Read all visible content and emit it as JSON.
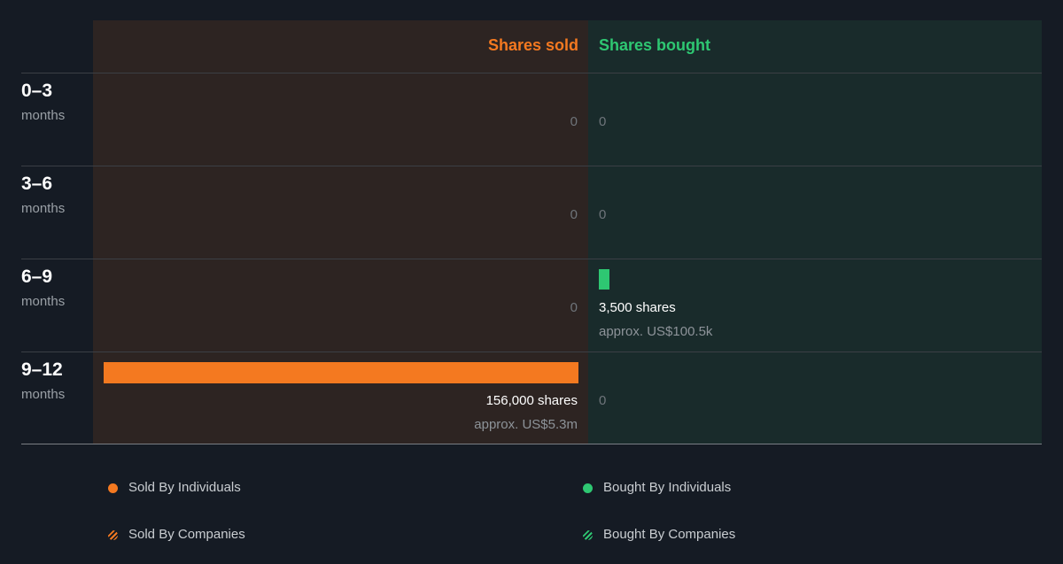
{
  "chart_data": {
    "type": "bar",
    "title": "",
    "columns": {
      "sold": "Shares sold",
      "bought": "Shares bought"
    },
    "rows": [
      {
        "range": "0–3",
        "unit": "months",
        "sold": {
          "shares": 0,
          "label": "0"
        },
        "bought": {
          "shares": 0,
          "label": "0"
        }
      },
      {
        "range": "3–6",
        "unit": "months",
        "sold": {
          "shares": 0,
          "label": "0"
        },
        "bought": {
          "shares": 0,
          "label": "0"
        }
      },
      {
        "range": "6–9",
        "unit": "months",
        "sold": {
          "shares": 0,
          "label": "0"
        },
        "bought": {
          "shares": 3500,
          "label": "3,500 shares",
          "value": "approx. US$100.5k"
        }
      },
      {
        "range": "9–12",
        "unit": "months",
        "sold": {
          "shares": 156000,
          "label": "156,000 shares",
          "value": "approx. US$5.3m"
        },
        "bought": {
          "shares": 0,
          "label": "0"
        }
      }
    ],
    "max_shares": 156000,
    "colors": {
      "sold": "#f47920",
      "bought": "#2ec772"
    },
    "legend": {
      "placement": "bottom",
      "items": [
        {
          "label": "Sold By Individuals",
          "style": "solid",
          "color": "#f47920"
        },
        {
          "label": "Bought By Individuals",
          "style": "solid",
          "color": "#2ec772"
        },
        {
          "label": "Sold By Companies",
          "style": "striped",
          "color": "#f47920"
        },
        {
          "label": "Bought By Companies",
          "style": "striped",
          "color": "#2ec772"
        }
      ]
    }
  }
}
